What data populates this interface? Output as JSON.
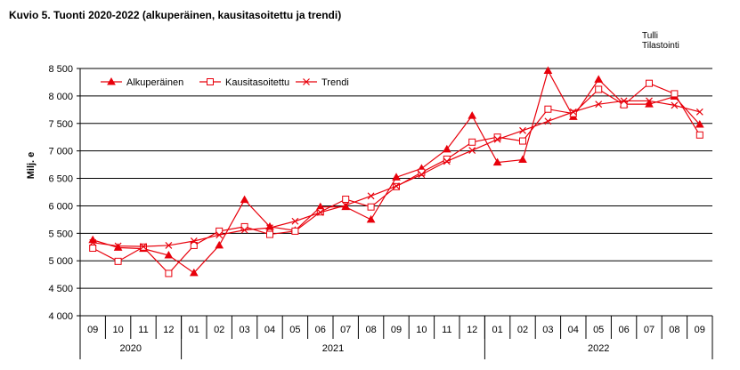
{
  "title": "Kuvio  5. Tuonti 2020-2022 (alkuperäinen, kausitasoitettu ja trendi)",
  "source": [
    "Tulli",
    "Tilastointi"
  ],
  "chart_data": {
    "type": "line",
    "ylabel": "Milj. e",
    "ylim": [
      4000,
      8500
    ],
    "yticks": [
      4000,
      4500,
      5000,
      5500,
      6000,
      6500,
      7000,
      7500,
      8000,
      8500
    ],
    "ytick_labels": [
      "4 000",
      "4 500",
      "5 000",
      "5 500",
      "6 000",
      "6 500",
      "7 000",
      "7 500",
      "8 000",
      "8 500"
    ],
    "grid": "horizontal",
    "legend_position": "top-left",
    "categories": [
      "09",
      "10",
      "11",
      "12",
      "01",
      "02",
      "03",
      "04",
      "05",
      "06",
      "07",
      "08",
      "09",
      "10",
      "11",
      "12",
      "01",
      "02",
      "03",
      "04",
      "05",
      "06",
      "07",
      "08",
      "09"
    ],
    "years": [
      {
        "label": "2020",
        "start": 0,
        "end": 3
      },
      {
        "label": "2021",
        "start": 4,
        "end": 15
      },
      {
        "label": "2022",
        "start": 16,
        "end": 24
      }
    ],
    "series": [
      {
        "name": "Alkuperäinen",
        "marker": "triangle",
        "color": "#e8000b",
        "values": [
          5380,
          5240,
          5220,
          5100,
          4780,
          5280,
          6110,
          5620,
          5550,
          5980,
          5980,
          5750,
          6520,
          6680,
          7030,
          7640,
          6790,
          6840,
          8460,
          7620,
          8300,
          7850,
          7850,
          7990,
          7480
        ]
      },
      {
        "name": "Kausitasoitettu",
        "marker": "square",
        "color": "#e8000b",
        "values": [
          5230,
          4990,
          5250,
          4770,
          5280,
          5540,
          5620,
          5480,
          5540,
          5890,
          6120,
          5980,
          6350,
          6610,
          6850,
          7160,
          7250,
          7180,
          7760,
          7680,
          8120,
          7840,
          8230,
          8040,
          7290
        ]
      },
      {
        "name": "Trendi",
        "marker": "x",
        "color": "#e8000b",
        "values": [
          5330,
          5270,
          5260,
          5280,
          5360,
          5470,
          5560,
          5600,
          5720,
          5880,
          6010,
          6180,
          6360,
          6570,
          6810,
          7010,
          7210,
          7370,
          7540,
          7710,
          7850,
          7910,
          7910,
          7830,
          7710
        ]
      }
    ]
  }
}
